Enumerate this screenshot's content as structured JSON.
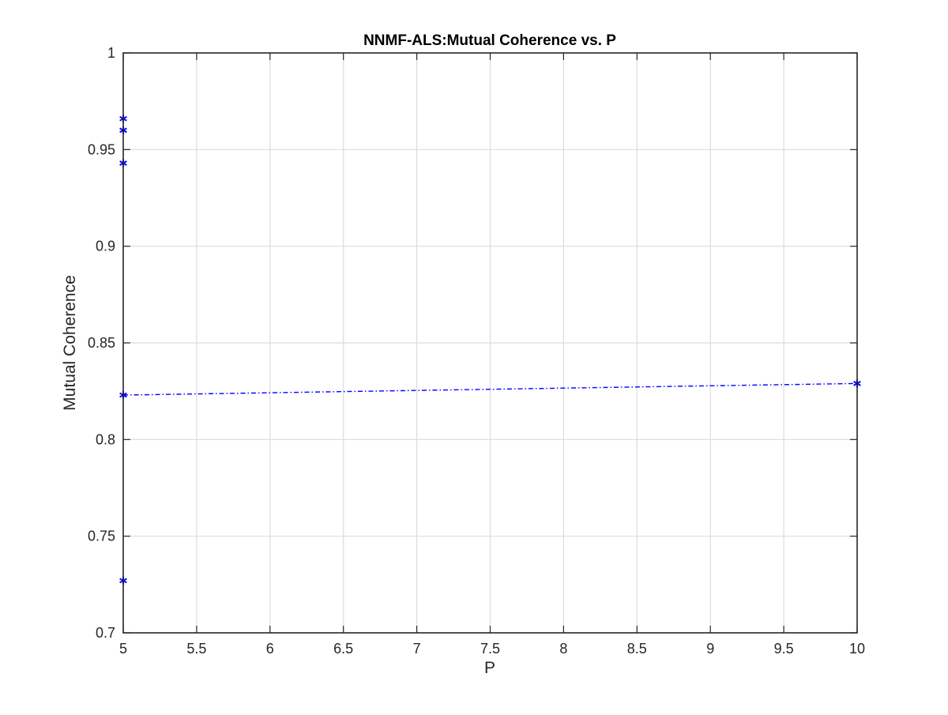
{
  "chart_data": {
    "type": "line",
    "title": "NNMF-ALS:Mutual Coherence vs. P",
    "xlabel": "P",
    "ylabel": "Mutual Coherence",
    "xlim": [
      5,
      10
    ],
    "ylim": [
      0.7,
      1
    ],
    "x_ticks": [
      "5",
      "5.5",
      "6",
      "6.5",
      "7",
      "7.5",
      "8",
      "8.5",
      "9",
      "9.5",
      "10"
    ],
    "y_ticks": [
      "0.7",
      "0.75",
      "0.8",
      "0.85",
      "0.9",
      "0.95",
      "1"
    ],
    "grid": true,
    "legend": "none",
    "series": [
      {
        "x": [
          5,
          10
        ],
        "y": [
          0.823,
          0.829
        ],
        "line_style": "dash-dot",
        "marker": "asterisk",
        "color": "#0000ff"
      },
      {
        "x": [
          5,
          5,
          5,
          5
        ],
        "y": [
          0.966,
          0.96,
          0.943,
          0.727
        ],
        "line_style": "none",
        "marker": "asterisk",
        "color": "#0000ff"
      }
    ]
  }
}
